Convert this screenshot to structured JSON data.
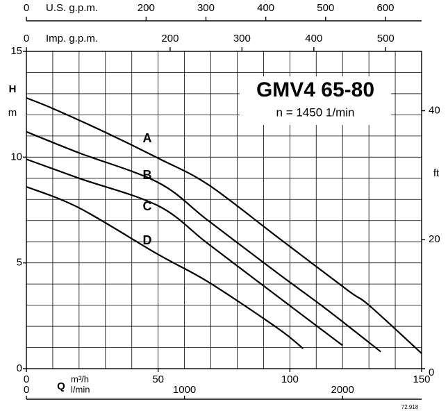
{
  "chart_data": {
    "type": "line",
    "title": "GMV4 65-80",
    "subtitle": "n = 1450 1/min",
    "x_label": "Q",
    "x_unit": "m³/h",
    "y_label": "H",
    "y_unit": "m",
    "y2_label": "ft",
    "xlim": [
      0,
      150
    ],
    "xticks": [
      0,
      50,
      100,
      150
    ],
    "ylim": [
      0,
      15
    ],
    "yticks": [
      0,
      5,
      10,
      15
    ],
    "y2lim": [
      0,
      49.21
    ],
    "y2ticks": [
      0,
      20,
      40
    ],
    "grid": {
      "x": 10,
      "y": 1
    },
    "top_axes": [
      {
        "label": "U.S. g.p.m.",
        "lim": [
          0,
          660.4
        ],
        "ticks": [
          0,
          200,
          300,
          400,
          500,
          600
        ]
      },
      {
        "label": "Imp. g.p.m.",
        "lim": [
          0,
          550
        ],
        "ticks": [
          0,
          200,
          300,
          400,
          500
        ]
      }
    ],
    "bottom_axis2": {
      "label": "l/min",
      "lim": [
        0,
        2500
      ],
      "ticks": [
        0,
        1000,
        2000
      ]
    },
    "code": "72.918",
    "series": [
      {
        "name": "A",
        "color": "#000000",
        "x": [
          0,
          10,
          29.5,
          50,
          69,
          95.5,
          122,
          130,
          150
        ],
        "values": [
          12.8,
          12.3,
          11.2,
          9.95,
          8.7,
          6.2,
          3.7,
          3.0,
          0.72
        ]
      },
      {
        "name": "B",
        "color": "#000000",
        "x": [
          0,
          20,
          50,
          69,
          95.5,
          114,
          134.5
        ],
        "values": [
          11.2,
          10.2,
          8.8,
          7.0,
          4.5,
          2.8,
          0.8
        ]
      },
      {
        "name": "C",
        "color": "#000000",
        "x": [
          0,
          20,
          50,
          69,
          95.5,
          120
        ],
        "values": [
          9.9,
          9.0,
          7.7,
          5.9,
          3.4,
          1.1
        ]
      },
      {
        "name": "D",
        "color": "#000000",
        "x": [
          0,
          20,
          50,
          69,
          95.5,
          105
        ],
        "values": [
          8.6,
          7.6,
          5.4,
          4.1,
          1.9,
          0.95
        ]
      }
    ]
  }
}
